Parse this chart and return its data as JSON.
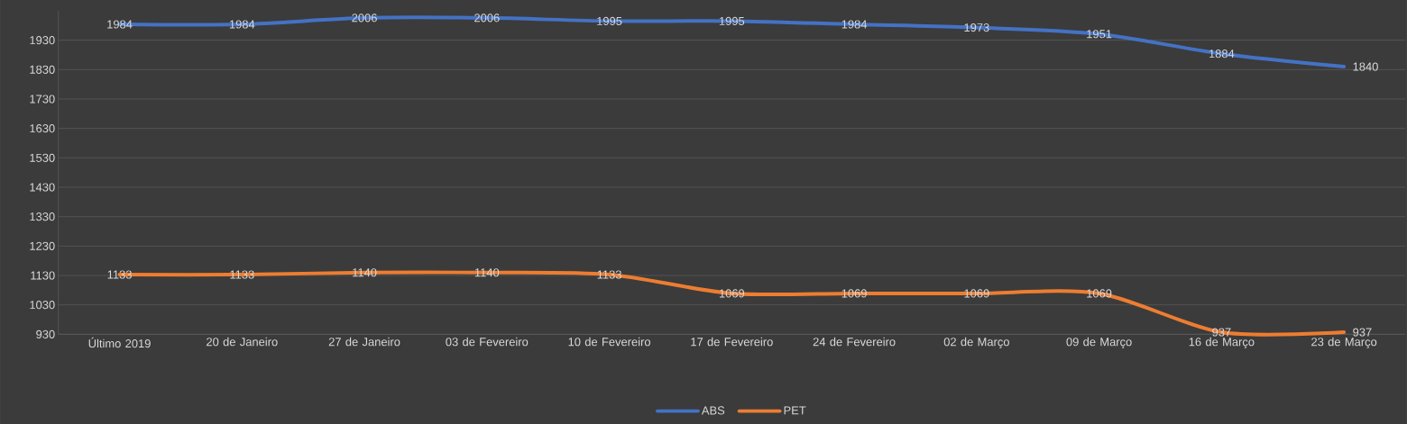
{
  "chart_data": {
    "type": "line",
    "categories": [
      "Último 2019",
      "20 de Janeiro",
      "27 de Janeiro",
      "03 de Fevereiro",
      "10 de Fevereiro",
      "17 de Fevereiro",
      "24 de Fevereiro",
      "02 de Março",
      "09 de Março",
      "16 de Março",
      "23 de Março"
    ],
    "series": [
      {
        "name": "ABS",
        "color": "#4472c4",
        "values": [
          1984,
          1984,
          2006,
          2006,
          1995,
          1995,
          1984,
          1973,
          1951,
          1884,
          1840
        ]
      },
      {
        "name": "PET",
        "color": "#ed7d31",
        "values": [
          1133,
          1133,
          1140,
          1140,
          1133,
          1069,
          1069,
          1069,
          1069,
          937,
          937
        ]
      }
    ],
    "ylim": [
      930,
      2030
    ],
    "yticks": [
      930,
      1030,
      1130,
      1230,
      1330,
      1430,
      1530,
      1630,
      1730,
      1830,
      1930
    ],
    "grid": "y",
    "legend": "bottom",
    "data_labels": true,
    "marker": "none",
    "line_style": "solid"
  }
}
